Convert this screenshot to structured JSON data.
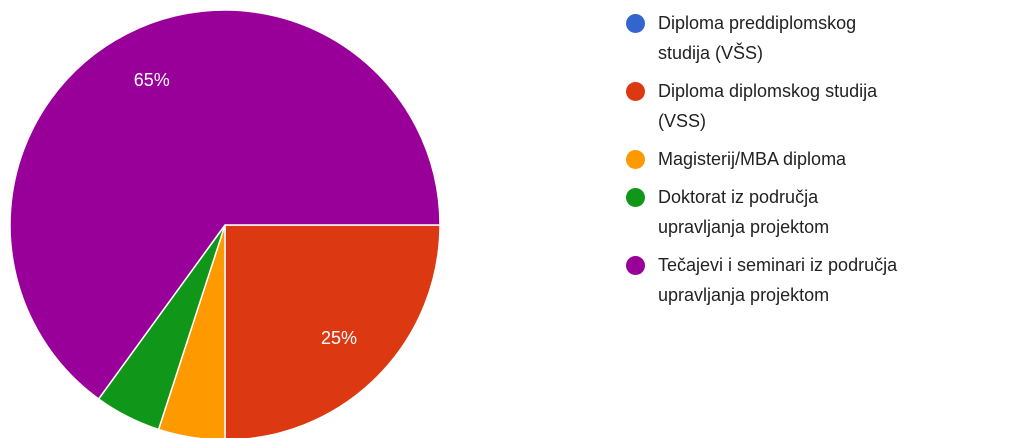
{
  "chart_data": {
    "type": "pie",
    "categories": [
      "Diploma preddiplomskog studija (VŠS)",
      "Diploma diplomskog studija (VSS)",
      "Magisterij/MBA diploma",
      "Doktorat iz područja upravljanja projektom",
      "Tečajevi i seminari iz područja upravljanja projektom"
    ],
    "values": [
      0,
      25,
      5,
      5,
      65
    ],
    "value_labels": [
      null,
      "25%",
      null,
      null,
      "65%"
    ],
    "colors": [
      "#3366cc",
      "#dc3912",
      "#ff9900",
      "#109618",
      "#990099"
    ],
    "legend": "right"
  }
}
